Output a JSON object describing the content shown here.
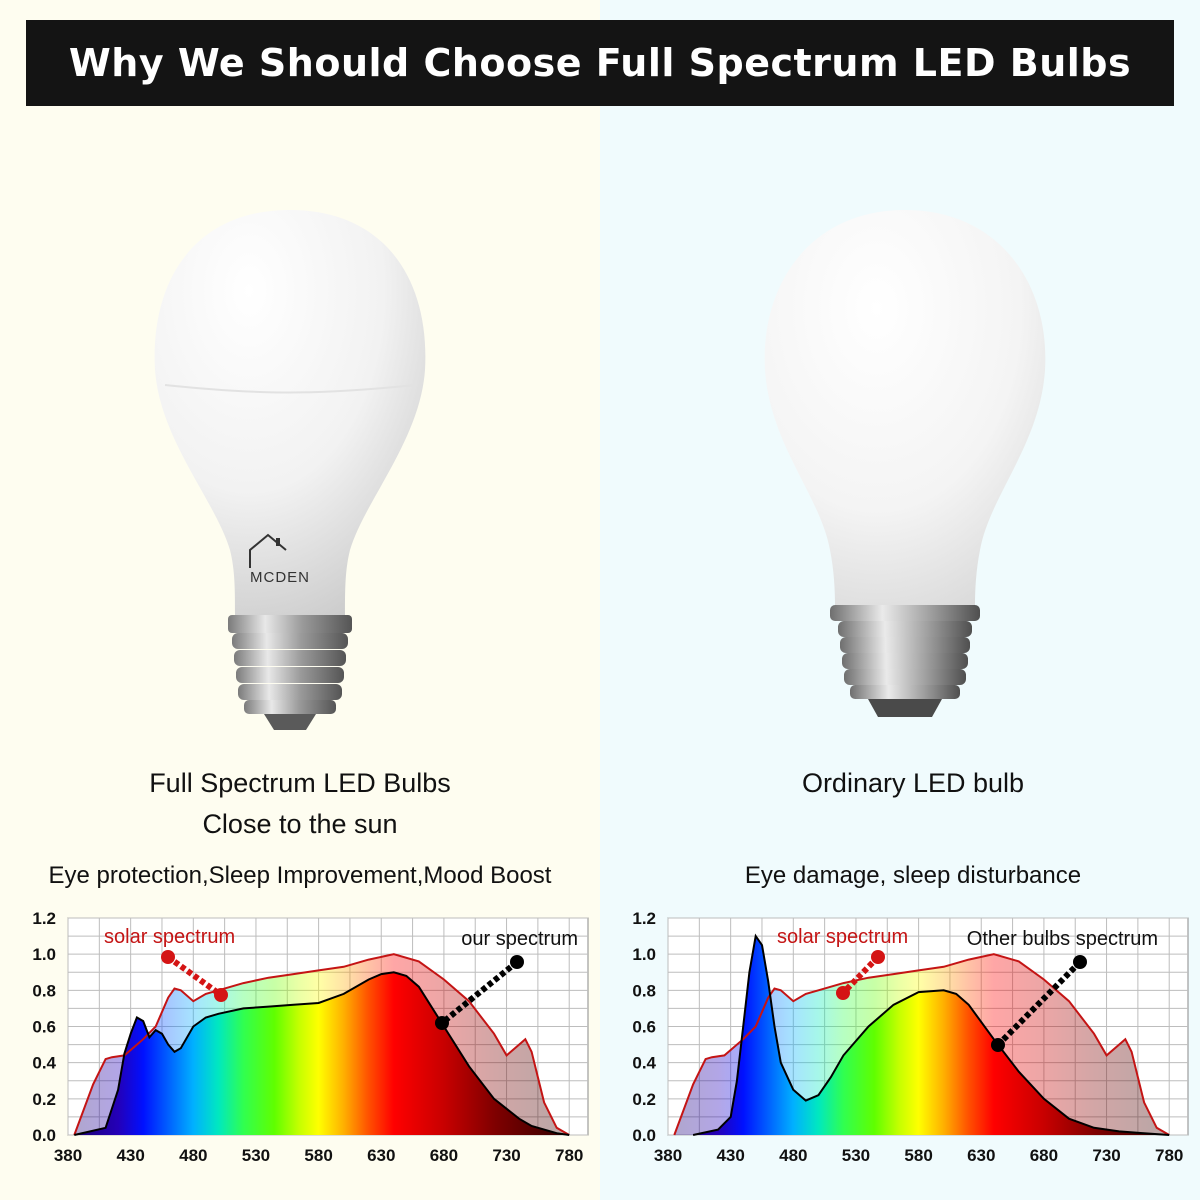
{
  "title": "Why We Should Choose Full Spectrum LED Bulbs",
  "left": {
    "brand": "MCDEN",
    "caption_line1": "Full Spectrum LED Bulbs",
    "caption_line2": "Close to the sun",
    "benefits": "Eye protection,Sleep Improvement,Mood Boost"
  },
  "right": {
    "caption_line1": "Ordinary LED bulb",
    "drawbacks": "Eye damage, sleep disturbance"
  },
  "colors": {
    "banner_bg": "#141414",
    "solar_curve": "#c41414",
    "solar_label": "#c41414",
    "bulb_curve": "#000000"
  },
  "chart_data": [
    {
      "type": "area",
      "title": "",
      "xlabel": "",
      "ylabel": "",
      "x_ticks": [
        380,
        430,
        480,
        530,
        580,
        630,
        680,
        730,
        780
      ],
      "y_ticks": [
        "0.0",
        "0.2",
        "0.4",
        "0.6",
        "0.8",
        "1.0",
        "1.2"
      ],
      "xlim": [
        380,
        795
      ],
      "ylim": [
        0,
        1.2
      ],
      "grid": true,
      "annotations": [
        "solar spectrum",
        "our spectrum"
      ],
      "series": [
        {
          "name": "solar spectrum",
          "x": [
            385,
            400,
            410,
            415,
            425,
            440,
            450,
            460,
            465,
            470,
            480,
            490,
            500,
            520,
            540,
            560,
            580,
            600,
            620,
            640,
            660,
            680,
            700,
            720,
            730,
            740,
            745,
            750,
            760,
            770,
            780
          ],
          "y": [
            0,
            0.28,
            0.42,
            0.43,
            0.44,
            0.53,
            0.6,
            0.76,
            0.81,
            0.8,
            0.74,
            0.78,
            0.8,
            0.84,
            0.87,
            0.89,
            0.91,
            0.93,
            0.97,
            1.0,
            0.96,
            0.86,
            0.74,
            0.56,
            0.44,
            0.5,
            0.53,
            0.46,
            0.18,
            0.04,
            0
          ]
        },
        {
          "name": "our spectrum",
          "x": [
            385,
            410,
            420,
            425,
            430,
            435,
            440,
            445,
            450,
            455,
            460,
            465,
            470,
            480,
            490,
            500,
            520,
            540,
            560,
            580,
            600,
            620,
            630,
            640,
            650,
            660,
            680,
            700,
            720,
            740,
            750,
            770,
            780
          ],
          "y": [
            0,
            0.04,
            0.25,
            0.45,
            0.56,
            0.65,
            0.63,
            0.54,
            0.58,
            0.56,
            0.5,
            0.46,
            0.48,
            0.6,
            0.65,
            0.67,
            0.7,
            0.71,
            0.72,
            0.73,
            0.78,
            0.86,
            0.89,
            0.9,
            0.88,
            0.82,
            0.6,
            0.38,
            0.2,
            0.09,
            0.05,
            0.01,
            0
          ]
        }
      ]
    },
    {
      "type": "area",
      "title": "",
      "xlabel": "",
      "ylabel": "",
      "x_ticks": [
        380,
        430,
        480,
        530,
        580,
        630,
        680,
        730,
        780
      ],
      "y_ticks": [
        "0.0",
        "0.2",
        "0.4",
        "0.6",
        "0.8",
        "1.0",
        "1.2"
      ],
      "xlim": [
        380,
        795
      ],
      "ylim": [
        0,
        1.2
      ],
      "grid": true,
      "annotations": [
        "solar spectrum",
        "Other bulbs spectrum"
      ],
      "series": [
        {
          "name": "solar spectrum",
          "x": [
            385,
            400,
            410,
            415,
            425,
            440,
            450,
            460,
            465,
            470,
            480,
            490,
            500,
            520,
            540,
            560,
            580,
            600,
            620,
            640,
            660,
            680,
            700,
            720,
            730,
            740,
            745,
            750,
            760,
            770,
            780
          ],
          "y": [
            0,
            0.28,
            0.42,
            0.43,
            0.44,
            0.53,
            0.6,
            0.76,
            0.81,
            0.8,
            0.74,
            0.78,
            0.8,
            0.84,
            0.87,
            0.89,
            0.91,
            0.93,
            0.97,
            1.0,
            0.96,
            0.86,
            0.74,
            0.56,
            0.44,
            0.5,
            0.53,
            0.46,
            0.18,
            0.04,
            0
          ]
        },
        {
          "name": "Other bulbs spectrum",
          "x": [
            400,
            420,
            430,
            435,
            440,
            445,
            450,
            455,
            460,
            465,
            470,
            480,
            490,
            500,
            510,
            520,
            540,
            560,
            580,
            600,
            610,
            620,
            640,
            660,
            680,
            700,
            720,
            740,
            760,
            780
          ],
          "y": [
            0,
            0.03,
            0.1,
            0.3,
            0.6,
            0.9,
            1.1,
            1.05,
            0.85,
            0.6,
            0.4,
            0.25,
            0.19,
            0.22,
            0.32,
            0.44,
            0.6,
            0.72,
            0.79,
            0.8,
            0.78,
            0.72,
            0.53,
            0.35,
            0.2,
            0.09,
            0.04,
            0.02,
            0.01,
            0
          ]
        }
      ]
    }
  ]
}
